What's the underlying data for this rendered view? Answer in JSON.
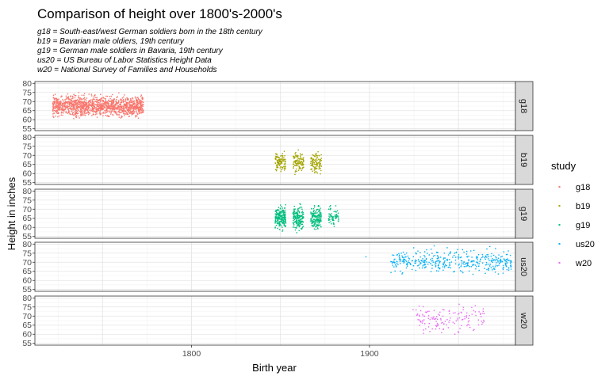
{
  "chart_data": {
    "type": "scatter",
    "title": "Comparison of height over 1800's-2000's",
    "subtitle_lines": [
      "g18 = South-east/west German soldiers born in the 18th century",
      "b19 = Bavarian male oldiers, 19th century",
      "g19 = German male soldiers in Bavaria, 19th century",
      "us20 = US Bureau of Labor Statistics Height Data",
      "w20 = National Survey of Families and Households"
    ],
    "xlabel": "Birth year",
    "ylabel": "Height in inches",
    "xlim": [
      1712,
      1982
    ],
    "ylim": [
      54,
      81
    ],
    "x_ticks": [
      1800,
      1900
    ],
    "y_ticks": [
      55,
      60,
      65,
      70,
      75,
      80
    ],
    "grid": true,
    "facets": "rows by study",
    "legend": {
      "title": "study",
      "position": "right"
    },
    "series": [
      {
        "name": "g18",
        "color": "#F8766D",
        "clusters": [
          {
            "x_range": [
              1722,
              1773
            ],
            "y_mean": 67.5,
            "y_sd": 2.6,
            "y_range": [
              56,
              75
            ],
            "n": 1400
          }
        ]
      },
      {
        "name": "b19",
        "color": "#A3A500",
        "clusters": [
          {
            "x_range": [
              1847,
              1853
            ],
            "y_mean": 66,
            "y_sd": 2.5,
            "y_range": [
              59,
              73
            ],
            "n": 110
          },
          {
            "x_range": [
              1857,
              1863
            ],
            "y_mean": 66,
            "y_sd": 2.5,
            "y_range": [
              56,
              73
            ],
            "n": 110
          },
          {
            "x_range": [
              1867,
              1873
            ],
            "y_mean": 66,
            "y_sd": 2.5,
            "y_range": [
              59,
              72
            ],
            "n": 110
          }
        ]
      },
      {
        "name": "g19",
        "color": "#00BF7D",
        "clusters": [
          {
            "x_range": [
              1847,
              1853
            ],
            "y_mean": 65.5,
            "y_sd": 3,
            "y_range": [
              57,
              74
            ],
            "n": 200
          },
          {
            "x_range": [
              1857,
              1863
            ],
            "y_mean": 65,
            "y_sd": 3,
            "y_range": [
              56,
              73
            ],
            "n": 180
          },
          {
            "x_range": [
              1867,
              1873
            ],
            "y_mean": 65.5,
            "y_sd": 3,
            "y_range": [
              57,
              72
            ],
            "n": 170
          },
          {
            "x_range": [
              1877,
              1883
            ],
            "y_mean": 66,
            "y_sd": 2.8,
            "y_range": [
              58,
              72
            ],
            "n": 70
          }
        ]
      },
      {
        "name": "us20",
        "color": "#00B0F6",
        "clusters": [
          {
            "x_range": [
              1912,
              1980
            ],
            "y_mean": 70.5,
            "y_sd": 3,
            "y_range": [
              62,
              79
            ],
            "n": 420
          }
        ],
        "outliers": [
          {
            "x": 1898,
            "y": 73
          }
        ]
      },
      {
        "name": "w20",
        "color": "#E76BF3",
        "clusters": [
          {
            "x_range": [
              1923,
              1965
            ],
            "y_mean": 68.5,
            "y_sd": 3.5,
            "y_range": [
              60,
              77
            ],
            "n": 140
          }
        ]
      }
    ]
  }
}
